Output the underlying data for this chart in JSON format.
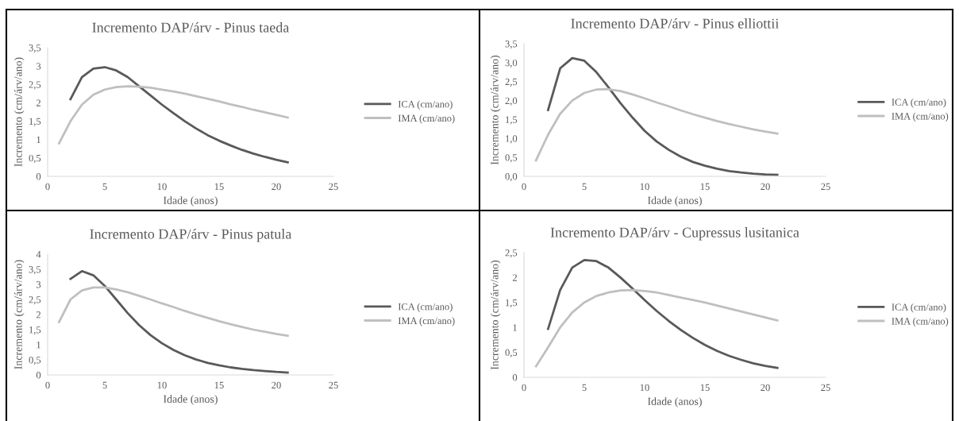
{
  "chart_data": [
    {
      "type": "line",
      "title": "Incremento DAP/árv - Pinus taeda",
      "xlabel": "Idade (anos)",
      "ylabel": "Incremento (cm/árv/ano)",
      "xlim": [
        0,
        25
      ],
      "xticks": [
        0,
        5,
        10,
        15,
        20,
        25
      ],
      "ylim": [
        0,
        3.5
      ],
      "yticks": [
        0,
        {
          "value": 0.5,
          "label": "0,5"
        },
        1,
        {
          "value": 1.5,
          "label": "1,5"
        },
        2,
        {
          "value": 2.5,
          "label": "2,5"
        },
        3,
        {
          "value": 3.5,
          "label": "3,5"
        }
      ],
      "legend": "right",
      "grid": false,
      "marker": "none",
      "line_style": "solid",
      "series": [
        {
          "name": "ICA (cm/ano)",
          "color": "#595959",
          "x": [
            2,
            3,
            4,
            5,
            6,
            7,
            8,
            9,
            10,
            11,
            12,
            13,
            14,
            15,
            16,
            17,
            18,
            19,
            20,
            21
          ],
          "values": [
            2.1,
            2.7,
            2.93,
            2.97,
            2.88,
            2.7,
            2.45,
            2.2,
            1.95,
            1.72,
            1.5,
            1.3,
            1.12,
            0.97,
            0.84,
            0.72,
            0.62,
            0.53,
            0.45,
            0.38
          ]
        },
        {
          "name": "IMA (cm/ano)",
          "color": "#bfbfbf",
          "x": [
            1,
            2,
            3,
            4,
            5,
            6,
            7,
            8,
            9,
            10,
            11,
            12,
            13,
            14,
            15,
            16,
            17,
            18,
            19,
            20,
            21
          ],
          "values": [
            0.9,
            1.5,
            1.95,
            2.22,
            2.36,
            2.43,
            2.45,
            2.44,
            2.41,
            2.36,
            2.31,
            2.25,
            2.18,
            2.11,
            2.04,
            1.96,
            1.89,
            1.81,
            1.74,
            1.67,
            1.6
          ]
        }
      ]
    },
    {
      "type": "line",
      "title": "Incremento DAP/árv - Pinus elliottii",
      "xlabel": "Idade (anos)",
      "ylabel": "Incremento (cm/árv/ano)",
      "xlim": [
        0,
        25
      ],
      "xticks": [
        0,
        5,
        10,
        15,
        20,
        25
      ],
      "ylim": [
        0,
        3.5
      ],
      "yticks": [
        {
          "value": 0,
          "label": "0,0"
        },
        {
          "value": 0.5,
          "label": "0,5"
        },
        {
          "value": 1,
          "label": "1,0"
        },
        {
          "value": 1.5,
          "label": "1,5"
        },
        {
          "value": 2,
          "label": "2,0"
        },
        {
          "value": 2.5,
          "label": "2,5"
        },
        {
          "value": 3,
          "label": "3,0"
        },
        {
          "value": 3.5,
          "label": "3,5"
        }
      ],
      "legend": "right",
      "grid": false,
      "marker": "none",
      "line_style": "solid",
      "series": [
        {
          "name": "ICA (cm/ano)",
          "color": "#595959",
          "x": [
            2,
            3,
            4,
            5,
            6,
            7,
            8,
            9,
            10,
            11,
            12,
            13,
            14,
            15,
            16,
            17,
            18,
            19,
            20,
            21
          ],
          "values": [
            1.75,
            2.85,
            3.12,
            3.05,
            2.75,
            2.35,
            1.93,
            1.55,
            1.2,
            0.92,
            0.7,
            0.52,
            0.38,
            0.28,
            0.2,
            0.14,
            0.1,
            0.07,
            0.05,
            0.04
          ]
        },
        {
          "name": "IMA (cm/ano)",
          "color": "#bfbfbf",
          "x": [
            1,
            2,
            3,
            4,
            5,
            6,
            7,
            8,
            9,
            10,
            11,
            12,
            13,
            14,
            15,
            16,
            17,
            18,
            19,
            20,
            21
          ],
          "values": [
            0.42,
            1.1,
            1.65,
            2.0,
            2.2,
            2.29,
            2.3,
            2.25,
            2.16,
            2.06,
            1.95,
            1.85,
            1.74,
            1.64,
            1.55,
            1.46,
            1.38,
            1.31,
            1.24,
            1.18,
            1.13
          ]
        }
      ]
    },
    {
      "type": "line",
      "title": "Incremento DAP/árv - Pinus patula",
      "xlabel": "Idade (anos)",
      "ylabel": "Incremento (cm/árv/ano)",
      "xlim": [
        0,
        25
      ],
      "xticks": [
        0,
        5,
        10,
        15,
        20,
        25
      ],
      "ylim": [
        0,
        4
      ],
      "yticks": [
        0,
        {
          "value": 0.5,
          "label": "0,5"
        },
        1,
        {
          "value": 1.5,
          "label": "1,5"
        },
        2,
        {
          "value": 2.5,
          "label": "2,5"
        },
        3,
        {
          "value": 3.5,
          "label": "3,5"
        },
        4
      ],
      "legend": "right",
      "grid": false,
      "marker": "none",
      "line_style": "solid",
      "series": [
        {
          "name": "ICA (cm/ano)",
          "color": "#595959",
          "x": [
            2,
            3,
            4,
            5,
            6,
            7,
            8,
            9,
            10,
            11,
            12,
            13,
            14,
            15,
            16,
            17,
            18,
            19,
            20,
            21
          ],
          "values": [
            3.18,
            3.44,
            3.3,
            2.95,
            2.5,
            2.05,
            1.65,
            1.32,
            1.05,
            0.83,
            0.65,
            0.51,
            0.4,
            0.32,
            0.25,
            0.2,
            0.16,
            0.13,
            0.1,
            0.08
          ]
        },
        {
          "name": "IMA (cm/ano)",
          "color": "#bfbfbf",
          "x": [
            1,
            2,
            3,
            4,
            5,
            6,
            7,
            8,
            9,
            10,
            11,
            12,
            13,
            14,
            15,
            16,
            17,
            18,
            19,
            20,
            21
          ],
          "values": [
            1.75,
            2.5,
            2.8,
            2.9,
            2.9,
            2.83,
            2.74,
            2.62,
            2.5,
            2.37,
            2.25,
            2.12,
            2.0,
            1.89,
            1.78,
            1.68,
            1.59,
            1.5,
            1.43,
            1.36,
            1.3
          ]
        }
      ]
    },
    {
      "type": "line",
      "title": "Incremento DAP/árv - Cupressus lusitanica",
      "xlabel": "Idade (anos)",
      "ylabel": "Incremento (cm/árv/ano)",
      "xlim": [
        0,
        25
      ],
      "xticks": [
        0,
        5,
        10,
        15,
        20,
        25
      ],
      "ylim": [
        0,
        2.5
      ],
      "yticks": [
        0,
        {
          "value": 0.5,
          "label": "0,5"
        },
        1,
        {
          "value": 1.5,
          "label": "1,5"
        },
        2,
        {
          "value": 2.5,
          "label": "2,5"
        }
      ],
      "legend": "right",
      "grid": false,
      "marker": "none",
      "line_style": "solid",
      "series": [
        {
          "name": "ICA (cm/ano)",
          "color": "#595959",
          "x": [
            2,
            3,
            4,
            5,
            6,
            7,
            8,
            9,
            10,
            11,
            12,
            13,
            14,
            15,
            16,
            17,
            18,
            19,
            20,
            21
          ],
          "values": [
            0.97,
            1.75,
            2.2,
            2.35,
            2.33,
            2.2,
            2.0,
            1.78,
            1.55,
            1.33,
            1.13,
            0.95,
            0.79,
            0.65,
            0.53,
            0.43,
            0.35,
            0.28,
            0.23,
            0.19
          ]
        },
        {
          "name": "IMA (cm/ano)",
          "color": "#bfbfbf",
          "x": [
            1,
            2,
            3,
            4,
            5,
            6,
            7,
            8,
            9,
            10,
            11,
            12,
            13,
            14,
            15,
            16,
            17,
            18,
            19,
            20,
            21
          ],
          "values": [
            0.22,
            0.6,
            1.0,
            1.3,
            1.5,
            1.63,
            1.7,
            1.74,
            1.75,
            1.73,
            1.7,
            1.65,
            1.6,
            1.55,
            1.5,
            1.44,
            1.38,
            1.32,
            1.26,
            1.2,
            1.14
          ]
        }
      ]
    }
  ]
}
